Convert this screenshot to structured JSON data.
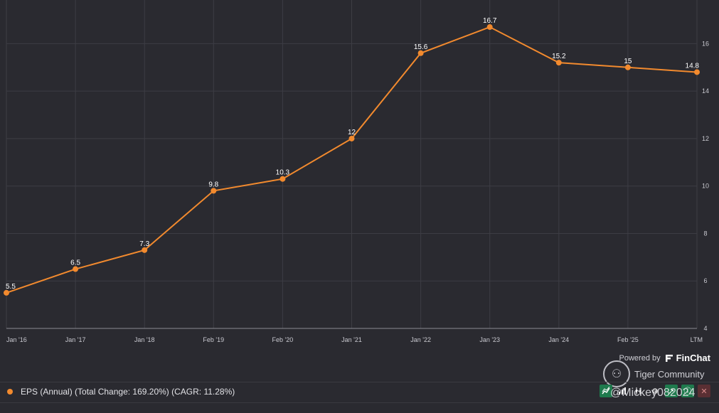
{
  "chart_data": {
    "type": "line",
    "categories": [
      "Jan '16",
      "Jan '17",
      "Jan '18",
      "Feb '19",
      "Feb '20",
      "Jan '21",
      "Jan '22",
      "Jan '23",
      "Jan '24",
      "Feb '25",
      "LTM"
    ],
    "series": [
      {
        "name": "EPS (Annual) (Total Change: 169.20%) (CAGR: 11.28%)",
        "values": [
          5.5,
          6.5,
          7.3,
          9.8,
          10.3,
          12,
          15.6,
          16.7,
          15.2,
          15,
          14.8
        ],
        "labels": [
          "5.5",
          "6.5",
          "7.3",
          "9.8",
          "10.3",
          "12",
          "15.6",
          "16.7",
          "15.2",
          "15",
          "14.8"
        ],
        "color": "#f28a2e"
      }
    ],
    "yticks": [
      "4",
      "6",
      "8",
      "10",
      "12",
      "14",
      "16"
    ],
    "ylim": [
      4,
      17.6
    ],
    "grid": true,
    "y_axis_position": "right",
    "legend_position": "bottom-left"
  },
  "legend": {
    "label": "EPS (Annual) (Total Change: 169.20%) (CAGR: 11.28%)"
  },
  "branding": {
    "powered_by": "Powered by",
    "brand": "FinChat",
    "community": "Tiger Community",
    "watermark": "@Mickey082024"
  },
  "toolbar": {
    "icons": [
      "line-chart-icon",
      "bar-signal-icon",
      "candlestick-icon",
      "gear-icon",
      "rocket-icon",
      "info-icon",
      "close-icon"
    ]
  }
}
